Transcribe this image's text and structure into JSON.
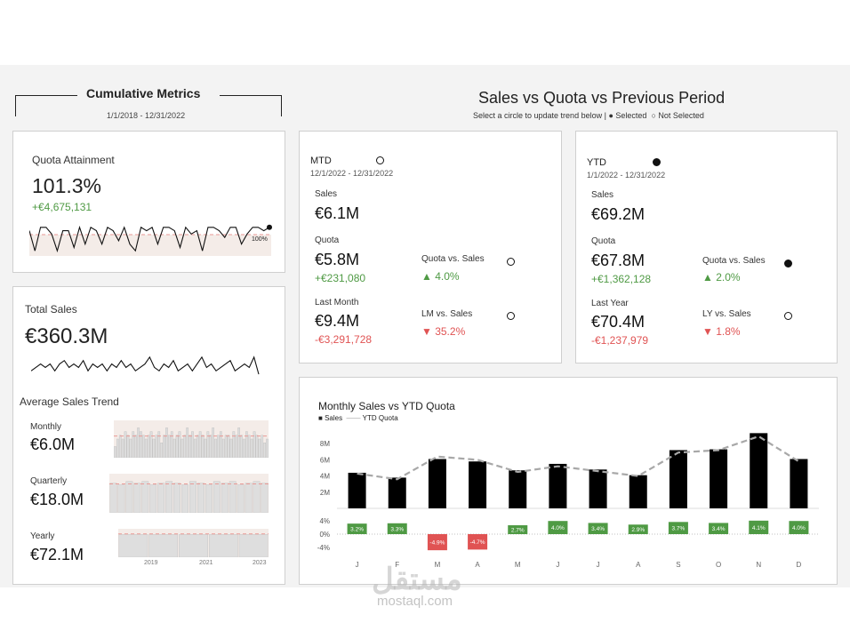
{
  "cumulative": {
    "title": "Cumulative Metrics",
    "date_range": "1/1/2018 - 12/31/2022",
    "quota_attainment": {
      "label": "Quota Attainment",
      "value": "101.3%",
      "delta": "+€4,675,131",
      "ref_label": "100%",
      "trend": [
        102,
        96,
        103,
        103,
        101,
        96,
        102,
        102,
        97,
        103,
        98,
        103,
        102,
        98,
        103,
        102,
        99,
        103,
        98,
        96,
        103,
        102,
        103,
        98,
        103,
        103,
        102,
        97,
        103,
        101,
        102,
        96,
        103,
        103,
        102,
        100,
        103,
        103,
        98,
        101,
        103,
        103,
        102,
        103
      ]
    },
    "total_sales": {
      "label": "Total Sales",
      "value": "€360.3M",
      "trend": [
        4,
        5,
        6,
        5,
        6,
        4,
        6,
        7,
        5,
        6,
        5,
        7,
        4,
        6,
        5,
        6,
        4,
        6,
        5,
        7,
        5,
        6,
        4,
        5,
        6,
        8,
        5,
        4,
        6,
        5,
        7,
        4,
        5,
        6,
        4,
        6,
        8,
        5,
        6,
        4,
        5,
        6,
        7,
        4,
        5,
        6,
        5,
        8,
        3
      ]
    },
    "avg_trend": {
      "title": "Average Sales Trend",
      "monthly": {
        "label": "Monthly",
        "value": "€6.0M",
        "bars": [
          3,
          5,
          6,
          5,
          7,
          6,
          5,
          7,
          6,
          8,
          7,
          6,
          5,
          6,
          7,
          5,
          6,
          7,
          4,
          6,
          8,
          6,
          7,
          5,
          6,
          7,
          5,
          6,
          8,
          6,
          7,
          5,
          6,
          7,
          6,
          5,
          7,
          6,
          8,
          5,
          6,
          7,
          5,
          6,
          6,
          5,
          7,
          6,
          8,
          6,
          5,
          7,
          6,
          5,
          7,
          6,
          5,
          6,
          4,
          5
        ]
      },
      "quarterly": {
        "label": "Quarterly",
        "value": "€18.0M",
        "bars": [
          18,
          17,
          19,
          18,
          19,
          17,
          18,
          19,
          18,
          17,
          19,
          18,
          17,
          19,
          18,
          19,
          17,
          18,
          19,
          18
        ]
      },
      "yearly": {
        "label": "Yearly",
        "value": "€72.1M",
        "bars": [
          72,
          72,
          72,
          72,
          72
        ]
      },
      "axis_years": [
        "2019",
        "2021",
        "2023"
      ]
    }
  },
  "header": {
    "title": "Sales vs Quota vs Previous Period",
    "subtitle": "Select a circle to update trend below |",
    "legend_selected": "Selected",
    "legend_not_selected": "Not Selected"
  },
  "mtd": {
    "title": "MTD",
    "date_range": "12/1/2022 - 12/31/2022",
    "sales_label": "Sales",
    "sales_value": "€6.1M",
    "quota_label": "Quota",
    "quota_value": "€5.8M",
    "quota_delta": "+€231,080",
    "prev_label": "Last Month",
    "prev_value": "€9.4M",
    "prev_delta": "-€3,291,728",
    "cmp1_label": "Quota vs. Sales",
    "cmp1_value": "▲ 4.0%",
    "cmp2_label": "LM vs. Sales",
    "cmp2_value": "▼ 35.2%"
  },
  "ytd": {
    "title": "YTD",
    "date_range": "1/1/2022 - 12/31/2022",
    "sales_label": "Sales",
    "sales_value": "€69.2M",
    "quota_label": "Quota",
    "quota_value": "€67.8M",
    "quota_delta": "+€1,362,128",
    "prev_label": "Last Year",
    "prev_value": "€70.4M",
    "prev_delta": "-€1,237,979",
    "cmp1_label": "Quota vs. Sales",
    "cmp1_value": "▲ 2.0%",
    "cmp2_label": "LY vs. Sales",
    "cmp2_value": "▼ 1.8%"
  },
  "monthly_chart": {
    "title": "Monthly Sales vs YTD Quota",
    "legend": [
      "Sales",
      "YTD Quota"
    ],
    "colors": {
      "bar": "#000000",
      "quota": "#a8a8a8",
      "pos": "#4f9a44",
      "neg": "#e05353"
    }
  },
  "chart_data": {
    "type": "bar",
    "categories": [
      "J",
      "F",
      "M",
      "A",
      "M",
      "J",
      "J",
      "A",
      "S",
      "O",
      "N",
      "D"
    ],
    "series": [
      {
        "name": "Sales",
        "values": [
          4.4,
          3.8,
          6.1,
          5.8,
          4.7,
          5.5,
          4.8,
          4.1,
          7.2,
          7.3,
          9.3,
          6.1
        ]
      },
      {
        "name": "YTD Quota",
        "values": [
          4.3,
          3.6,
          6.4,
          6.0,
          4.5,
          5.2,
          4.6,
          4.0,
          6.9,
          7.2,
          8.9,
          5.8
        ]
      }
    ],
    "variance_pct": [
      3.2,
      3.3,
      -4.9,
      -4.7,
      2.7,
      4.0,
      3.4,
      2.9,
      3.7,
      3.4,
      4.1,
      4.0
    ],
    "variance_labels": [
      "3.2%",
      "3.3%",
      "-4.9%",
      "-4.7%",
      "2.7%",
      "4.0%",
      "3.4%",
      "2.9%",
      "3.7%",
      "3.4%",
      "4.1%",
      "4.0%"
    ],
    "y_ticks": [
      "8M",
      "6M",
      "4M",
      "2M"
    ],
    "y_tick_values": [
      8,
      6,
      4,
      2
    ],
    "ylim": [
      0,
      10
    ],
    "pct_ticks": [
      "4%",
      "0%",
      "-4%"
    ],
    "pct_tick_values": [
      4,
      0,
      -4
    ],
    "pct_lim": [
      -6,
      6
    ]
  }
}
